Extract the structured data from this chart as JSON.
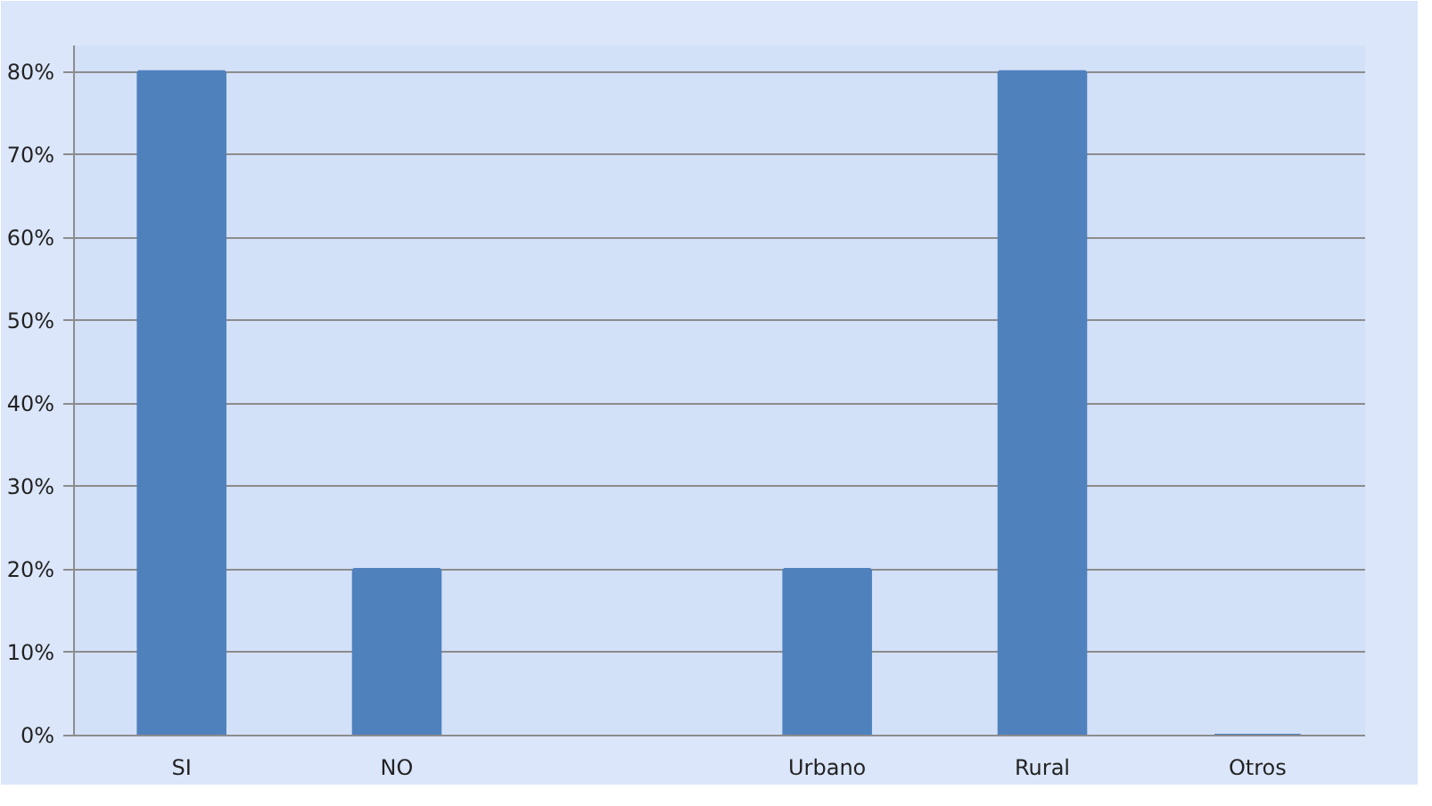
{
  "chart_data": {
    "type": "bar",
    "categories": [
      "SI",
      "NO",
      null,
      "Urbano",
      "Rural",
      "Otros"
    ],
    "values": [
      80,
      20,
      null,
      20,
      80,
      0
    ],
    "color": "#4f81bd",
    "ylim": [
      0,
      80
    ],
    "yticks": [
      {
        "value": 0,
        "label": "0%"
      },
      {
        "value": 10,
        "label": "10%"
      },
      {
        "value": 20,
        "label": "20%"
      },
      {
        "value": 30,
        "label": "30%"
      },
      {
        "value": 40,
        "label": "40%"
      },
      {
        "value": 50,
        "label": "50%"
      },
      {
        "value": 60,
        "label": "60%"
      },
      {
        "value": 70,
        "label": "70%"
      },
      {
        "value": 80,
        "label": "80%"
      }
    ],
    "grid": "y"
  }
}
